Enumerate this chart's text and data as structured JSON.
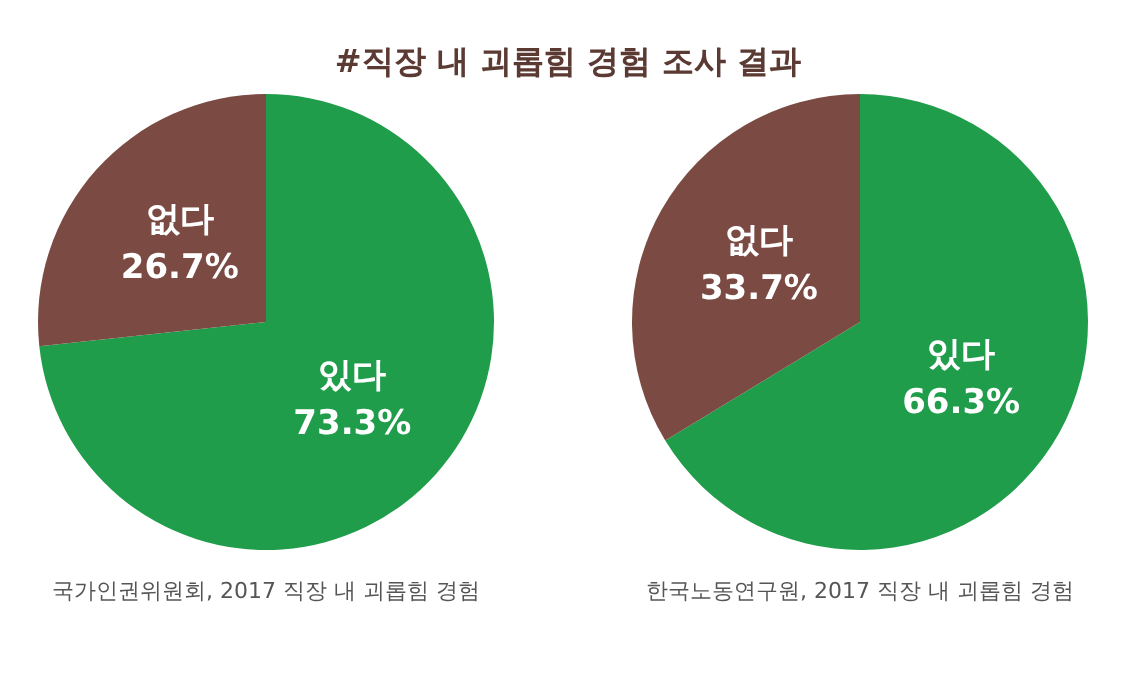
{
  "chart_data": [
    {
      "type": "pie",
      "title": "#직장 내 괴롭힘 경험 조사 결과",
      "categories": [
        "있다",
        "없다"
      ],
      "values": [
        73.3,
        26.7
      ],
      "colors": [
        "#1f9d4a",
        "#7b4b43"
      ],
      "value_labels": [
        "73.3%",
        "26.7%"
      ],
      "annotations": [
        "국가인권위원회, 2017 직장 내 괴롭힘 경험"
      ]
    },
    {
      "type": "pie",
      "categories": [
        "있다",
        "없다"
      ],
      "values": [
        66.3,
        33.7
      ],
      "colors": [
        "#1f9d4a",
        "#7b4b43"
      ],
      "value_labels": [
        "66.3%",
        "33.7%"
      ],
      "annotations": [
        "한국노동연구원, 2017 직장 내 괴롭힘 경험"
      ]
    }
  ]
}
